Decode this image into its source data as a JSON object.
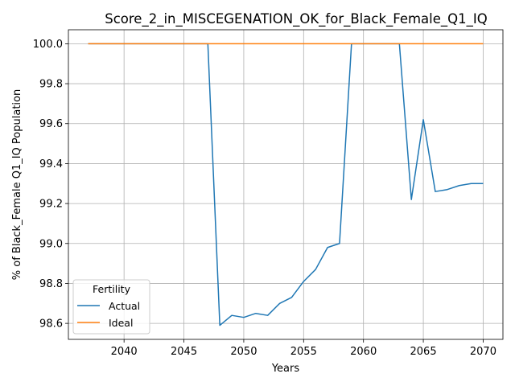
{
  "chart_data": {
    "type": "line",
    "title": "Score_2_in_MISCEGENATION_OK_for_Black_Female_Q1_IQ",
    "xlabel": "Years",
    "ylabel": "% of Black_Female Q1_IQ Population",
    "xlim": [
      2035.35,
      2071.65
    ],
    "ylim": [
      98.52,
      100.07
    ],
    "xticks": [
      2040,
      2045,
      2050,
      2055,
      2060,
      2065,
      2070
    ],
    "yticks": [
      98.6,
      98.8,
      99.0,
      99.2,
      99.4,
      99.6,
      99.8,
      100.0
    ],
    "xtick_labels": [
      "2040",
      "2045",
      "2050",
      "2055",
      "2060",
      "2065",
      "2070"
    ],
    "ytick_labels": [
      "98.6",
      "98.8",
      "99.0",
      "99.2",
      "99.4",
      "99.6",
      "99.8",
      "100.0"
    ],
    "grid": true,
    "legend": {
      "title": "Fertility",
      "position": "lower-left"
    },
    "series": [
      {
        "name": "Actual",
        "color": "#1f77b4",
        "x": [
          2037,
          2038,
          2039,
          2040,
          2041,
          2042,
          2043,
          2044,
          2045,
          2046,
          2047,
          2048,
          2049,
          2050,
          2051,
          2052,
          2053,
          2054,
          2055,
          2056,
          2057,
          2058,
          2059,
          2060,
          2061,
          2062,
          2063,
          2064,
          2065,
          2066,
          2067,
          2068,
          2069,
          2070
        ],
        "y": [
          100.0,
          100.0,
          100.0,
          100.0,
          100.0,
          100.0,
          100.0,
          100.0,
          100.0,
          100.0,
          100.0,
          98.59,
          98.64,
          98.63,
          98.65,
          98.64,
          98.7,
          98.73,
          98.81,
          98.87,
          98.98,
          99.0,
          100.0,
          100.0,
          100.0,
          100.0,
          100.0,
          99.22,
          99.62,
          99.26,
          99.27,
          99.29,
          99.3,
          99.3
        ]
      },
      {
        "name": "Ideal",
        "color": "#ff7f0e",
        "x": [
          2037,
          2038,
          2039,
          2040,
          2041,
          2042,
          2043,
          2044,
          2045,
          2046,
          2047,
          2048,
          2049,
          2050,
          2051,
          2052,
          2053,
          2054,
          2055,
          2056,
          2057,
          2058,
          2059,
          2060,
          2061,
          2062,
          2063,
          2064,
          2065,
          2066,
          2067,
          2068,
          2069,
          2070
        ],
        "y": [
          100.0,
          100.0,
          100.0,
          100.0,
          100.0,
          100.0,
          100.0,
          100.0,
          100.0,
          100.0,
          100.0,
          100.0,
          100.0,
          100.0,
          100.0,
          100.0,
          100.0,
          100.0,
          100.0,
          100.0,
          100.0,
          100.0,
          100.0,
          100.0,
          100.0,
          100.0,
          100.0,
          100.0,
          100.0,
          100.0,
          100.0,
          100.0,
          100.0,
          100.0
        ]
      }
    ]
  }
}
